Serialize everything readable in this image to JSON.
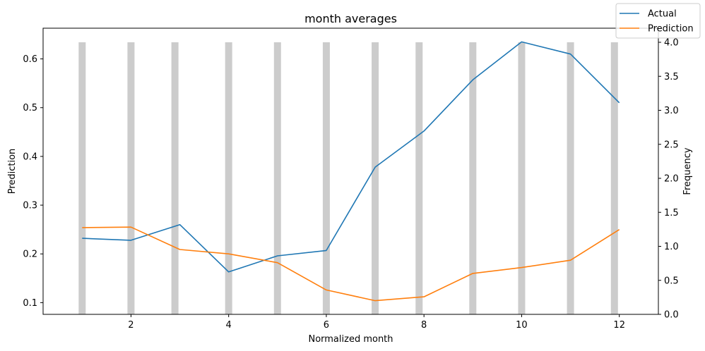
{
  "chart_data": {
    "type": "line",
    "title": "month averages",
    "xlabel": "Normalized month",
    "ylabel": "Prediction",
    "y2label": "Frequency",
    "xlim": [
      0.2,
      12.8
    ],
    "ylim": [
      0.076,
      0.663
    ],
    "y2lim": [
      0,
      4.0
    ],
    "x_ticks": [
      2,
      4,
      6,
      8,
      10,
      12
    ],
    "y_ticks": [
      0.1,
      0.2,
      0.3,
      0.4,
      0.5,
      0.6
    ],
    "y2_ticks": [
      0.0,
      0.5,
      1.0,
      1.5,
      2.0,
      2.5,
      3.0,
      3.5,
      4.0
    ],
    "x": [
      1,
      2,
      3,
      4,
      5,
      6,
      7,
      8,
      9,
      10,
      11,
      12
    ],
    "series": [
      {
        "name": "Actual",
        "color": "#1f77b4",
        "values": [
          0.232,
          0.228,
          0.26,
          0.163,
          0.196,
          0.207,
          0.378,
          0.452,
          0.557,
          0.635,
          0.61,
          0.51
        ]
      },
      {
        "name": "Prediction",
        "color": "#ff7f0e",
        "values": [
          0.254,
          0.255,
          0.209,
          0.2,
          0.182,
          0.126,
          0.104,
          0.112,
          0.16,
          0.172,
          0.187,
          0.25
        ]
      }
    ],
    "histogram": {
      "color": "#cccccc",
      "x": [
        1,
        2,
        2.9,
        4,
        5,
        6,
        7,
        7.9,
        9,
        10,
        11,
        11.9
      ],
      "values": [
        4,
        4,
        4,
        4,
        4,
        4,
        4,
        4,
        4,
        4,
        4,
        4
      ]
    },
    "legend_position": "top-right"
  }
}
